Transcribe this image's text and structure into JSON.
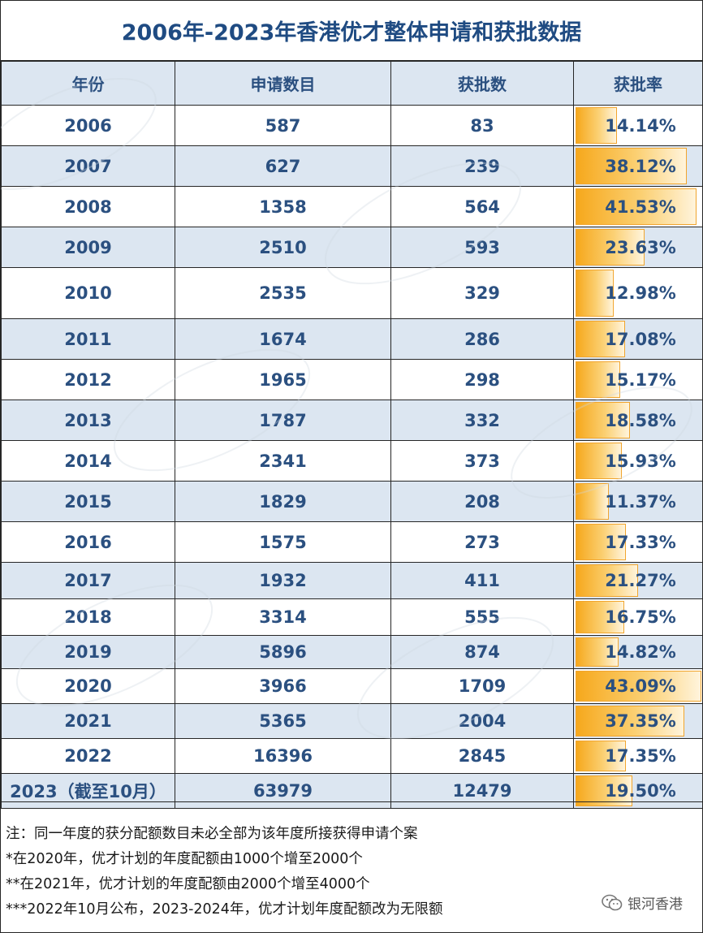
{
  "title": "2006年-2023年香港优才整体申请和获批数据",
  "headers": [
    "年份",
    "申请数目",
    "获批数",
    "获批率"
  ],
  "rows": [
    {
      "year": "2006",
      "applications": "587",
      "approved": "83",
      "rate": "14.14%"
    },
    {
      "year": "2007",
      "applications": "627",
      "approved": "239",
      "rate": "38.12%"
    },
    {
      "year": "2008",
      "applications": "1358",
      "approved": "564",
      "rate": "41.53%"
    },
    {
      "year": "2009",
      "applications": "2510",
      "approved": "593",
      "rate": "23.63%"
    },
    {
      "year": "2010",
      "applications": "2535",
      "approved": "329",
      "rate": "12.98%"
    },
    {
      "year": "2011",
      "applications": "1674",
      "approved": "286",
      "rate": "17.08%"
    },
    {
      "year": "2012",
      "applications": "1965",
      "approved": "298",
      "rate": "15.17%"
    },
    {
      "year": "2013",
      "applications": "1787",
      "approved": "332",
      "rate": "18.58%"
    },
    {
      "year": "2014",
      "applications": "2341",
      "approved": "373",
      "rate": "15.93%"
    },
    {
      "year": "2015",
      "applications": "1829",
      "approved": "208",
      "rate": "11.37%"
    },
    {
      "year": "2016",
      "applications": "1575",
      "approved": "273",
      "rate": "17.33%"
    },
    {
      "year": "2017",
      "applications": "1932",
      "approved": "411",
      "rate": "21.27%"
    },
    {
      "year": "2018",
      "applications": "3314",
      "approved": "555",
      "rate": "16.75%"
    },
    {
      "year": "2019",
      "applications": "5896",
      "approved": "874",
      "rate": "14.82%"
    },
    {
      "year": "2020",
      "applications": "3966",
      "approved": "1709",
      "rate": "43.09%"
    },
    {
      "year": "2021",
      "applications": "5365",
      "approved": "2004",
      "rate": "37.35%"
    },
    {
      "year": "2022",
      "applications": "16396",
      "approved": "2845",
      "rate": "17.35%"
    },
    {
      "year": "2023（截至10月）",
      "applications": "63979",
      "approved": "12479",
      "rate": "19.50%"
    }
  ],
  "notes": [
    "注：同一年度的获分配额数目未必全部为该年度所接获得申请个案",
    "*在2020年，优才计划的年度配额由1000个增至2000个",
    "**在2021年，优才计划的年度配额由2000个增至4000个",
    "***2022年10月公布，2023-2024年，优才计划年度配额改为无限额"
  ],
  "brand": {
    "name": "银河香港",
    "icon": "wechat-icon"
  },
  "colors": {
    "title": "#1f4b82",
    "cell_text": "#2b5080",
    "band": "#dce6f1",
    "bar": "#f6a81c"
  }
}
